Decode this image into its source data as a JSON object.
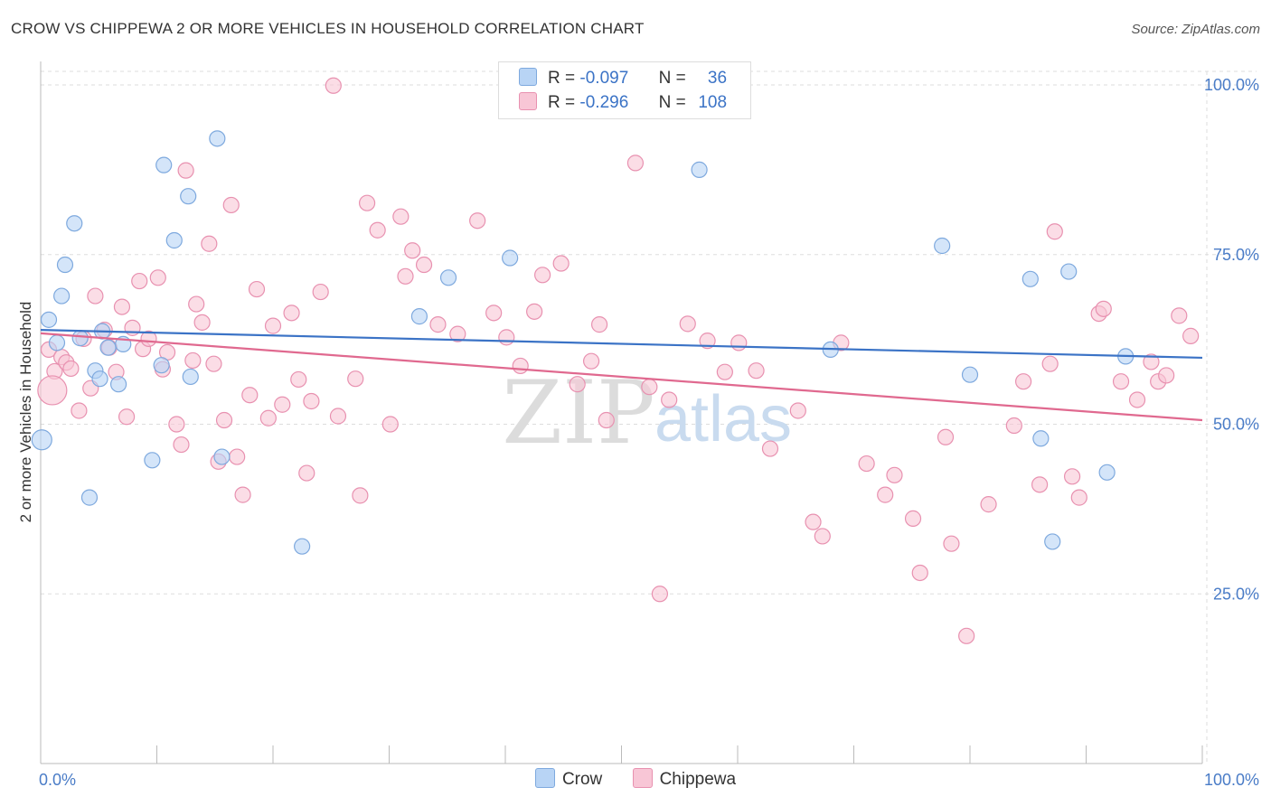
{
  "title": "CROW VS CHIPPEWA 2 OR MORE VEHICLES IN HOUSEHOLD CORRELATION CHART",
  "source": "Source: ZipAtlas.com",
  "watermark": {
    "zip": "ZIP",
    "atlas": "atlas"
  },
  "legend": {
    "rows": [
      {
        "r_label": "R =",
        "r_value": "-0.097",
        "n_label": "N =",
        "n_value": "36"
      },
      {
        "r_label": "R =",
        "r_value": "-0.296",
        "n_label": "N =",
        "n_value": "108"
      }
    ]
  },
  "chart_data": {
    "type": "scatter",
    "title": "CROW VS CHIPPEWA 2 OR MORE VEHICLES IN HOUSEHOLD CORRELATION CHART",
    "xlabel": "",
    "ylabel": "2 or more Vehicles in Household",
    "xlim": [
      0,
      100
    ],
    "ylim": [
      0,
      102
    ],
    "x_tick_labels": [
      "0.0%",
      "100.0%"
    ],
    "y_ticks": [
      25,
      50,
      75,
      100
    ],
    "y_tick_labels": [
      "25.0%",
      "50.0%",
      "75.0%",
      "100.0%"
    ],
    "grid": true,
    "legend_position": "top-center",
    "colors": {
      "crow_fill": "#b8d4f5",
      "crow_stroke": "#7ea9de",
      "crow_line": "#3b73c6",
      "chippewa_fill": "#f8c6d6",
      "chippewa_stroke": "#e891b0",
      "chippewa_line": "#e0698f"
    },
    "series": [
      {
        "name": "Crow",
        "trend": [
          [
            0,
            63.9
          ],
          [
            100,
            59.8
          ]
        ],
        "points": [
          [
            0.7,
            65.4
          ],
          [
            1.4,
            62.0
          ],
          [
            1.8,
            68.9
          ],
          [
            2.1,
            73.5
          ],
          [
            2.9,
            79.6
          ],
          [
            3.4,
            62.7
          ],
          [
            4.2,
            39.2
          ],
          [
            4.7,
            57.9
          ],
          [
            5.1,
            56.7
          ],
          [
            5.3,
            63.7
          ],
          [
            5.8,
            61.3
          ],
          [
            6.7,
            55.9
          ],
          [
            7.1,
            61.8
          ],
          [
            9.6,
            44.7
          ],
          [
            10.4,
            58.7
          ],
          [
            10.6,
            88.2
          ],
          [
            11.5,
            77.1
          ],
          [
            12.7,
            83.6
          ],
          [
            12.9,
            57.0
          ],
          [
            15.2,
            92.1
          ],
          [
            15.6,
            45.2
          ],
          [
            0.1,
            47.7
          ],
          [
            22.5,
            32.0
          ],
          [
            32.6,
            65.9
          ],
          [
            35.1,
            71.6
          ],
          [
            40.4,
            74.5
          ],
          [
            56.7,
            87.5
          ],
          [
            68.0,
            61.0
          ],
          [
            77.6,
            76.3
          ],
          [
            80.0,
            57.3
          ],
          [
            85.2,
            71.4
          ],
          [
            86.1,
            47.9
          ],
          [
            87.1,
            32.7
          ],
          [
            88.5,
            72.5
          ],
          [
            91.8,
            42.9
          ],
          [
            93.4,
            60.0
          ]
        ]
      },
      {
        "name": "Chippewa",
        "trend": [
          [
            0,
            63.4
          ],
          [
            100,
            50.6
          ]
        ],
        "points": [
          [
            0.7,
            61.0
          ],
          [
            1.2,
            57.8
          ],
          [
            1.8,
            59.9
          ],
          [
            2.2,
            59.1
          ],
          [
            2.6,
            58.2
          ],
          [
            3.3,
            52.0
          ],
          [
            3.7,
            62.6
          ],
          [
            4.3,
            55.3
          ],
          [
            4.7,
            68.9
          ],
          [
            5.5,
            63.9
          ],
          [
            5.9,
            61.3
          ],
          [
            6.5,
            57.7
          ],
          [
            7.0,
            67.3
          ],
          [
            7.4,
            51.1
          ],
          [
            7.9,
            64.2
          ],
          [
            8.5,
            71.1
          ],
          [
            8.8,
            61.1
          ],
          [
            9.3,
            62.6
          ],
          [
            10.1,
            71.6
          ],
          [
            10.5,
            58.1
          ],
          [
            10.9,
            60.6
          ],
          [
            11.7,
            50.0
          ],
          [
            12.1,
            47.0
          ],
          [
            12.5,
            87.4
          ],
          [
            13.1,
            59.4
          ],
          [
            13.4,
            67.7
          ],
          [
            13.9,
            65.0
          ],
          [
            14.5,
            76.6
          ],
          [
            14.9,
            58.9
          ],
          [
            15.3,
            44.5
          ],
          [
            15.8,
            50.6
          ],
          [
            16.4,
            82.3
          ],
          [
            16.9,
            45.2
          ],
          [
            17.4,
            39.6
          ],
          [
            18.0,
            54.3
          ],
          [
            18.6,
            69.9
          ],
          [
            19.6,
            50.9
          ],
          [
            20.0,
            64.5
          ],
          [
            20.8,
            52.9
          ],
          [
            21.6,
            66.4
          ],
          [
            22.2,
            56.6
          ],
          [
            22.9,
            42.8
          ],
          [
            23.3,
            53.4
          ],
          [
            24.1,
            69.5
          ],
          [
            25.2,
            99.9
          ],
          [
            25.6,
            51.2
          ],
          [
            27.1,
            56.7
          ],
          [
            27.5,
            39.5
          ],
          [
            28.1,
            82.6
          ],
          [
            29.0,
            78.6
          ],
          [
            30.1,
            50.0
          ],
          [
            31.0,
            80.6
          ],
          [
            31.4,
            71.8
          ],
          [
            32.0,
            75.6
          ],
          [
            33.0,
            73.5
          ],
          [
            34.2,
            64.7
          ],
          [
            35.9,
            63.3
          ],
          [
            37.6,
            80.0
          ],
          [
            39.0,
            66.4
          ],
          [
            40.1,
            62.8
          ],
          [
            41.3,
            58.6
          ],
          [
            42.5,
            66.6
          ],
          [
            43.2,
            72.0
          ],
          [
            44.8,
            73.7
          ],
          [
            46.2,
            55.9
          ],
          [
            47.4,
            59.3
          ],
          [
            48.1,
            64.7
          ],
          [
            48.7,
            50.6
          ],
          [
            51.2,
            88.5
          ],
          [
            52.4,
            55.5
          ],
          [
            53.3,
            25.0
          ],
          [
            54.1,
            53.6
          ],
          [
            55.7,
            64.8
          ],
          [
            57.4,
            62.3
          ],
          [
            58.9,
            57.7
          ],
          [
            60.1,
            62.0
          ],
          [
            61.6,
            57.9
          ],
          [
            62.8,
            46.4
          ],
          [
            65.2,
            52.0
          ],
          [
            66.5,
            35.6
          ],
          [
            67.3,
            33.5
          ],
          [
            68.9,
            62.0
          ],
          [
            71.1,
            44.2
          ],
          [
            72.7,
            39.6
          ],
          [
            73.5,
            42.5
          ],
          [
            75.1,
            36.1
          ],
          [
            75.7,
            28.1
          ],
          [
            77.9,
            48.1
          ],
          [
            78.4,
            32.4
          ],
          [
            81.6,
            38.2
          ],
          [
            83.8,
            49.8
          ],
          [
            84.6,
            56.3
          ],
          [
            86.0,
            41.1
          ],
          [
            86.9,
            58.9
          ],
          [
            87.3,
            78.4
          ],
          [
            88.8,
            42.3
          ],
          [
            89.4,
            39.2
          ],
          [
            91.1,
            66.3
          ],
          [
            91.5,
            67.0
          ],
          [
            93.0,
            56.3
          ],
          [
            94.4,
            53.6
          ],
          [
            95.6,
            59.2
          ],
          [
            96.2,
            56.3
          ],
          [
            96.9,
            57.2
          ],
          [
            98.0,
            66.0
          ],
          [
            99.0,
            63.0
          ],
          [
            1.0,
            55.0
          ],
          [
            79.7,
            18.8
          ]
        ]
      }
    ]
  }
}
